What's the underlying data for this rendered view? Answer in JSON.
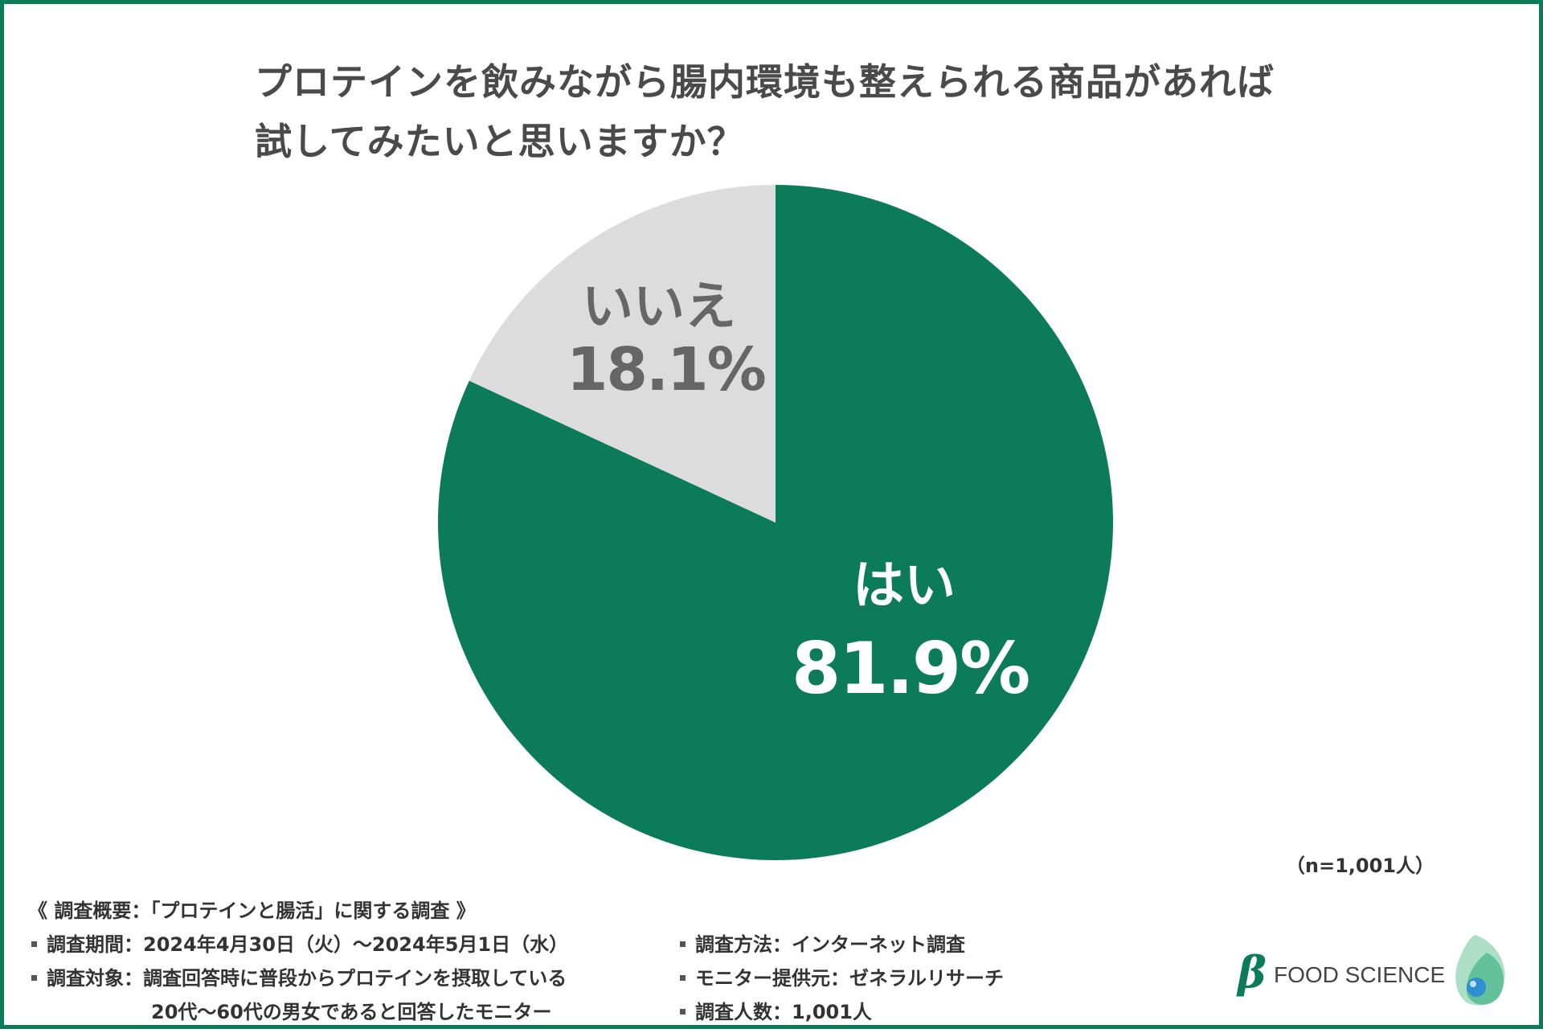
{
  "title": {
    "line1": "プロテインを飲みながら腸内環境も整えられる商品があれば",
    "line2": "試してみたいと思いますか？"
  },
  "chart_data": {
    "type": "pie",
    "title": "プロテインを飲みながら腸内環境も整えられる商品があれば試してみたいと思いますか？",
    "slices": [
      {
        "label": "はい",
        "value": 81.9,
        "value_label": "81.9%",
        "color": "#0b7b58"
      },
      {
        "label": "いいえ",
        "value": 18.1,
        "value_label": "18.1%",
        "color": "#dcdcdc"
      }
    ],
    "sample_size": "（n=1,001人）"
  },
  "colors": {
    "accent": "#0b7b58",
    "no_slice": "#dcdcdc",
    "label_dark": "#666666",
    "label_light": "#ffffff"
  },
  "survey": {
    "heading": "《 調査概要：「プロテインと腸活」に関する調査 》",
    "left": [
      {
        "key": "調査期間：",
        "value": "2024年4月30日（火）〜2024年5月1日（水）"
      },
      {
        "key": "調査対象：",
        "value": "調査回答時に普段からプロテインを摂取している",
        "cont": "20代〜60代の男女であると回答したモニター"
      }
    ],
    "right": [
      {
        "key": "調査方法：",
        "value": "インターネット調査"
      },
      {
        "key": "モニター提供元：",
        "value": "ゼネラルリサーチ"
      },
      {
        "key": "調査人数：",
        "value": "1,001人"
      }
    ]
  },
  "logo": {
    "symbol": "β",
    "text": "FOOD SCIENCE"
  }
}
